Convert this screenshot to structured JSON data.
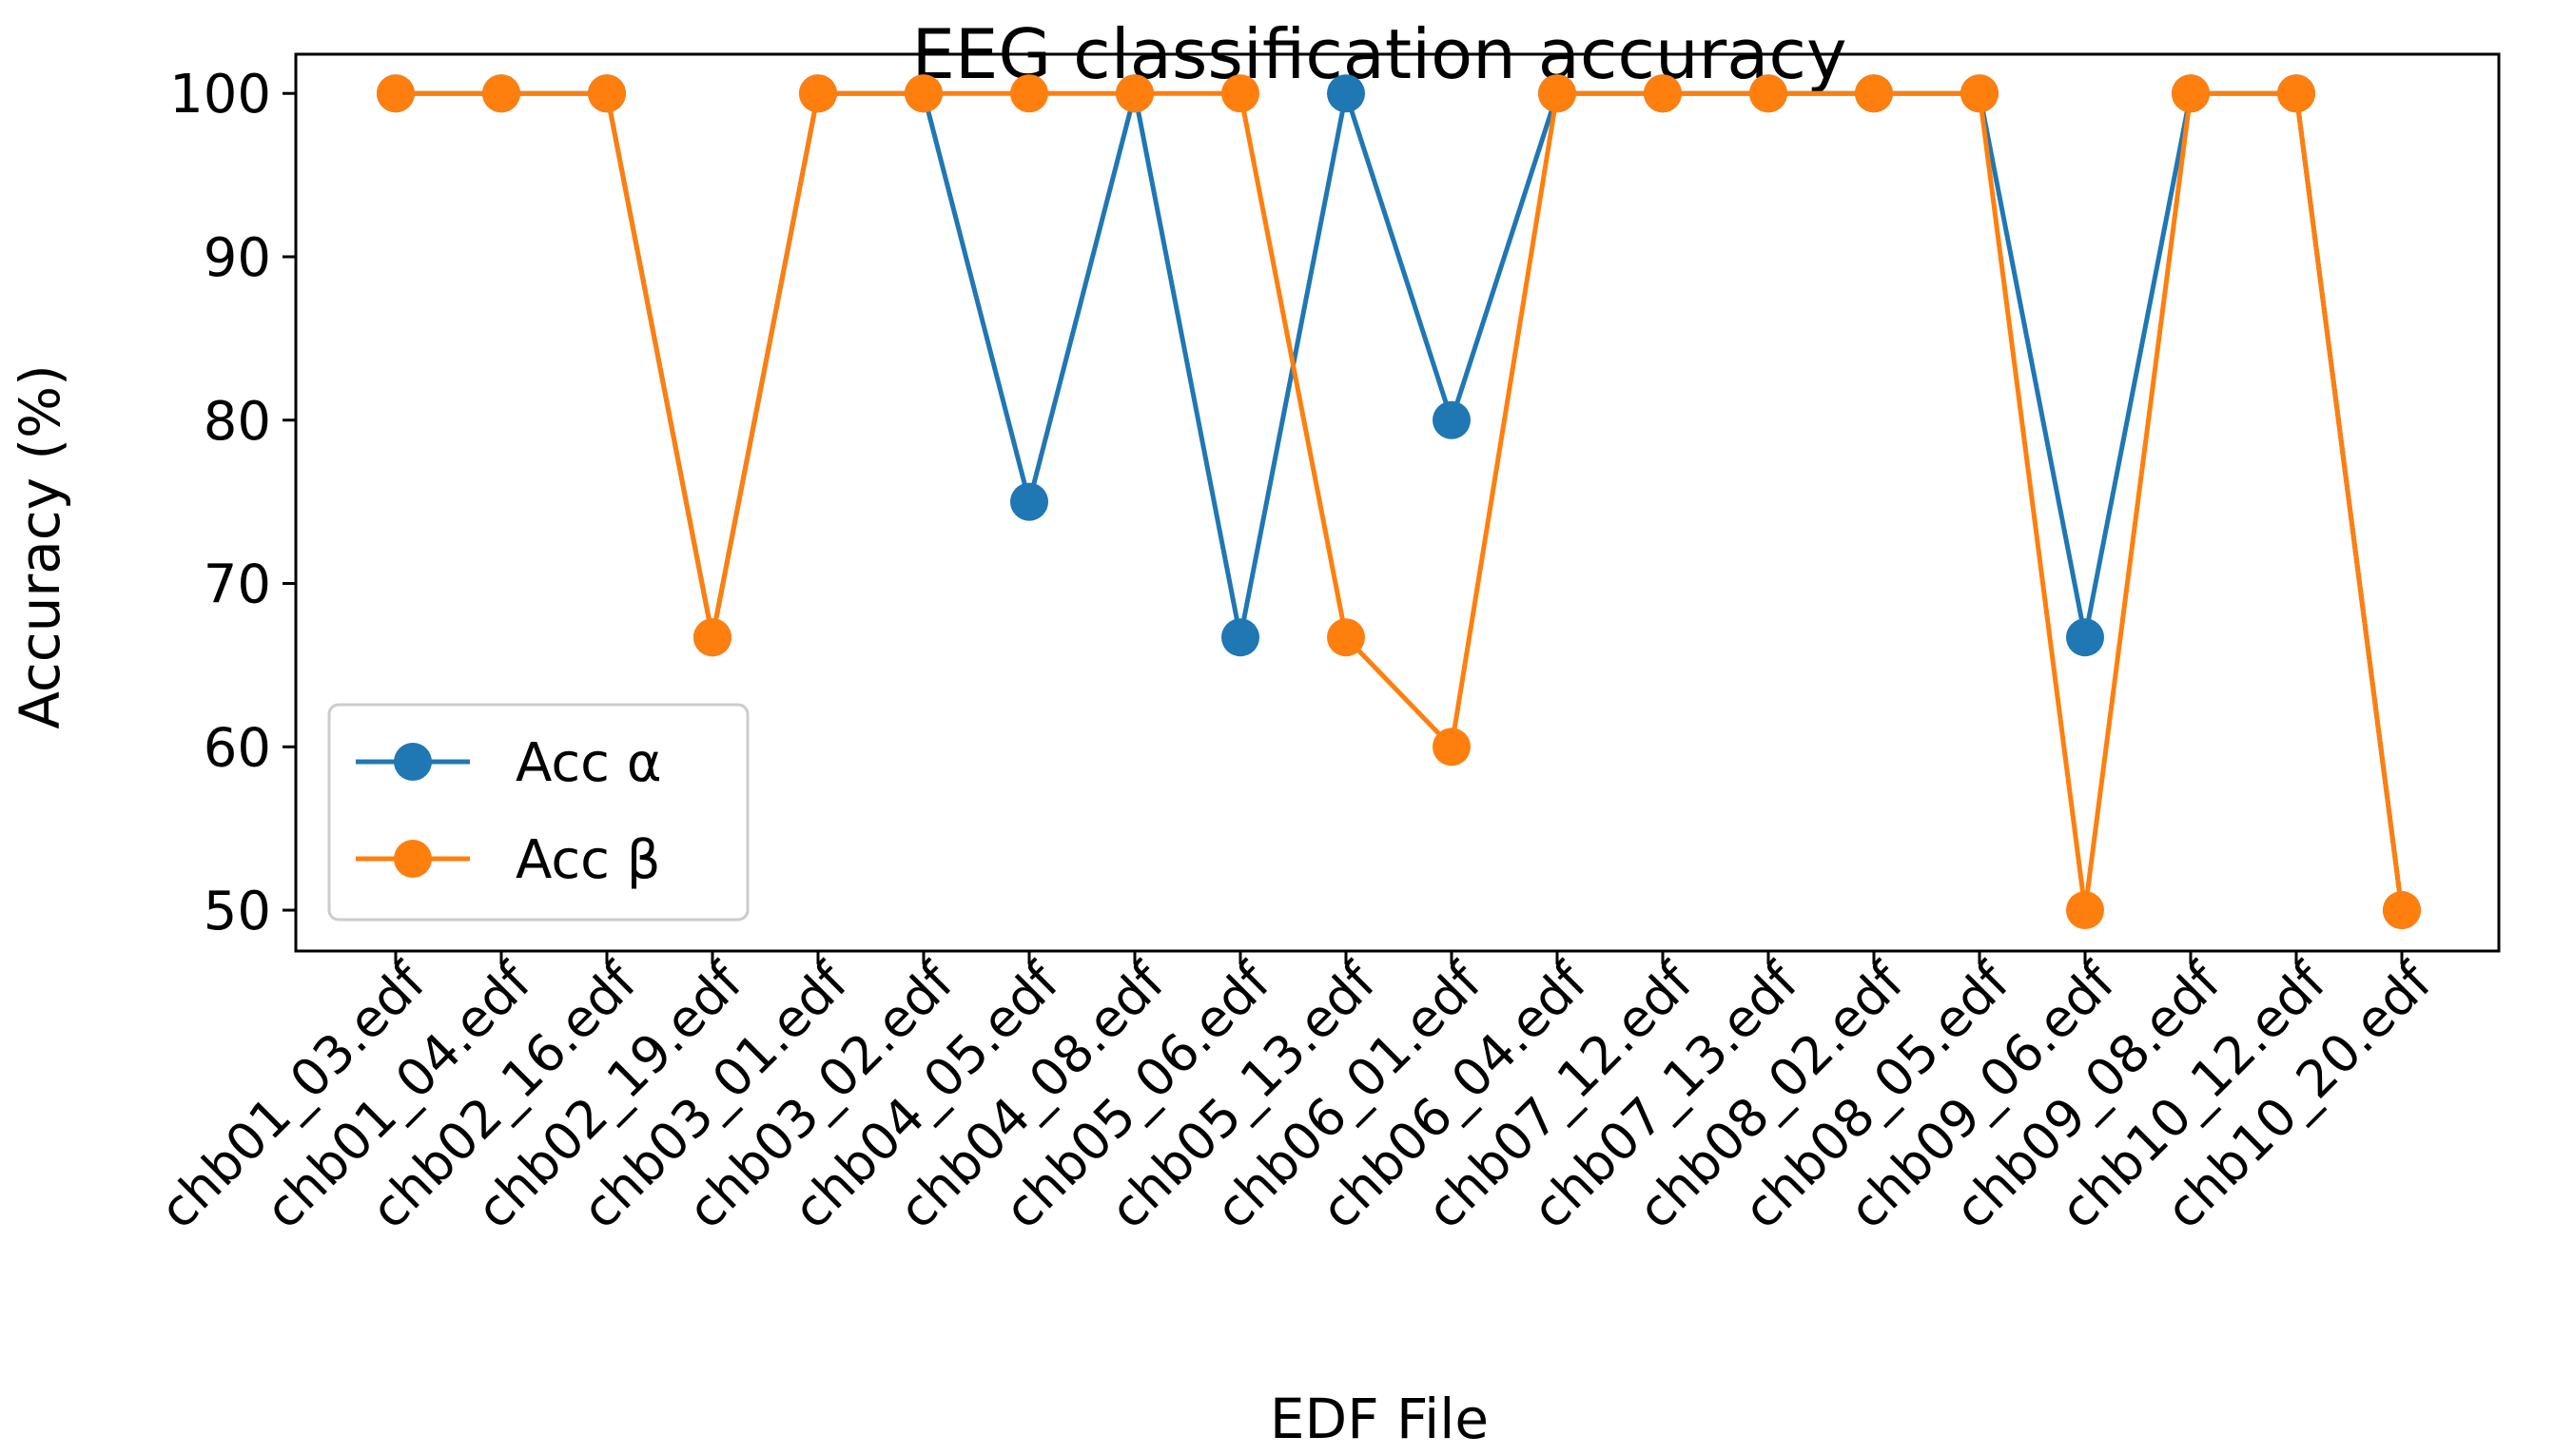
{
  "chart_data": {
    "type": "line",
    "title": "EEG classification accuracy",
    "xlabel": "EDF File",
    "ylabel": "Accuracy (%)",
    "categories": [
      "chb01_03.edf",
      "chb01_04.edf",
      "chb02_16.edf",
      "chb02_19.edf",
      "chb03_01.edf",
      "chb03_02.edf",
      "chb04_05.edf",
      "chb04_08.edf",
      "chb05_06.edf",
      "chb05_13.edf",
      "chb06_01.edf",
      "chb06_04.edf",
      "chb07_12.edf",
      "chb07_13.edf",
      "chb08_02.edf",
      "chb08_05.edf",
      "chb09_06.edf",
      "chb09_08.edf",
      "chb10_12.edf",
      "chb10_20.edf"
    ],
    "yticks": [
      50,
      60,
      70,
      80,
      90,
      100
    ],
    "ylim": [
      47.5,
      102.4
    ],
    "grid": false,
    "legend_position": "lower-left",
    "series": [
      {
        "name": "Acc α",
        "color": "#1f77b4",
        "values": [
          100,
          100,
          100,
          66.7,
          100,
          100,
          75,
          100,
          66.7,
          100,
          80,
          100,
          100,
          100,
          100,
          100,
          66.7,
          100,
          100,
          50
        ]
      },
      {
        "name": "Acc β",
        "color": "#ff7f0e",
        "values": [
          100,
          100,
          100,
          66.7,
          100,
          100,
          100,
          100,
          100,
          66.7,
          60,
          100,
          100,
          100,
          100,
          100,
          50,
          100,
          100,
          50
        ]
      }
    ]
  }
}
